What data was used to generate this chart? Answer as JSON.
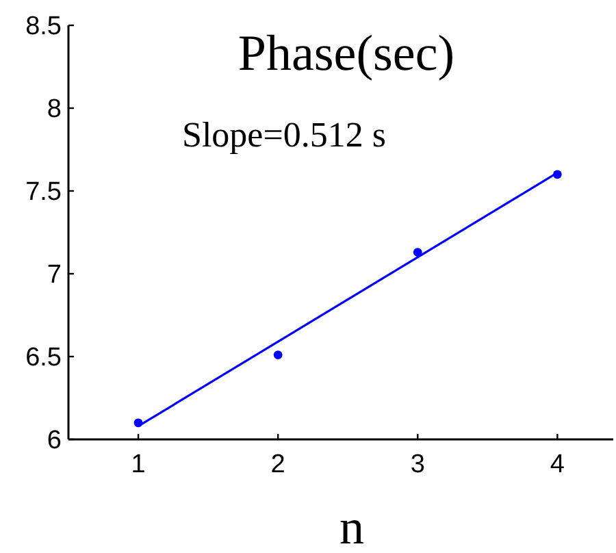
{
  "chart_data": {
    "type": "scatter",
    "title": "Phase(sec)",
    "xlabel": "n",
    "annotations": [
      "Slope=0.512 s"
    ],
    "xlim": [
      0.5,
      4.4
    ],
    "ylim": [
      6,
      8.5
    ],
    "xticks": [
      1,
      2,
      3,
      4
    ],
    "yticks": [
      6,
      6.5,
      7,
      7.5,
      8,
      8.5
    ],
    "series": [
      {
        "color": "#0000ff",
        "marker": "circle",
        "x": [
          1,
          2,
          3,
          4
        ],
        "values": [
          6.1,
          6.51,
          7.13,
          7.6
        ]
      },
      {
        "type": "line",
        "color": "#0000ff",
        "marker": "none",
        "x": [
          1,
          4
        ],
        "values": [
          6.08,
          7.61
        ]
      }
    ]
  }
}
